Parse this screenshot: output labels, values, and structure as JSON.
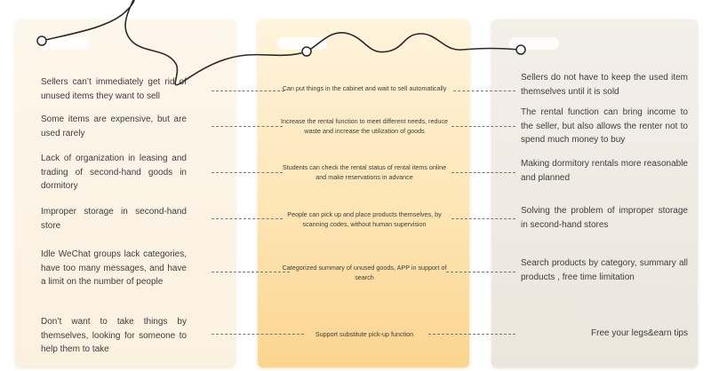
{
  "left_items": [
    "Sellers can’t immediately get rid of unused items they want to sell",
    "Some items are expensive, but are used rarely",
    "Lack of organization in leasing and trading of second-hand goods in dormitory",
    "Improper storage in second-hand store",
    "Idle WeChat groups lack categories, have too many messages, and have a limit on the number of people",
    "Don’t want to take things by themselves, looking for someone to help them to take"
  ],
  "middle_items": [
    "Can put things in the cabinet and wait to sell automatically",
    "Increase the rental function to meet different needs, reduce waste and increase the utilization of goods",
    "Students can check the rental status of rental items online and make reservations in advance",
    "People can pick up and place products themselves, by scanning codes, without human supervision",
    "Categorized summary of unused goods, APP in support of search",
    "Support substitute pick-up function"
  ],
  "right_items": [
    "Sellers do not have to keep the used item themselves until it is sold",
    "The rental function can bring income to the seller, but also allows the renter not to spend much money to buy",
    "Making dormitory rentals more reasonable and planned",
    "Solving the problem of improper storage in second-hand stores",
    "Search products by category, summary all products , free time limitation",
    "Free your legs&earn tips"
  ],
  "colors": {
    "left_panel": "#fdf6ea",
    "middle_panel": "#fde5b4",
    "right_panel": "#ece5dc",
    "text": "#3d3d3d",
    "wire": "#2a2a2a"
  }
}
